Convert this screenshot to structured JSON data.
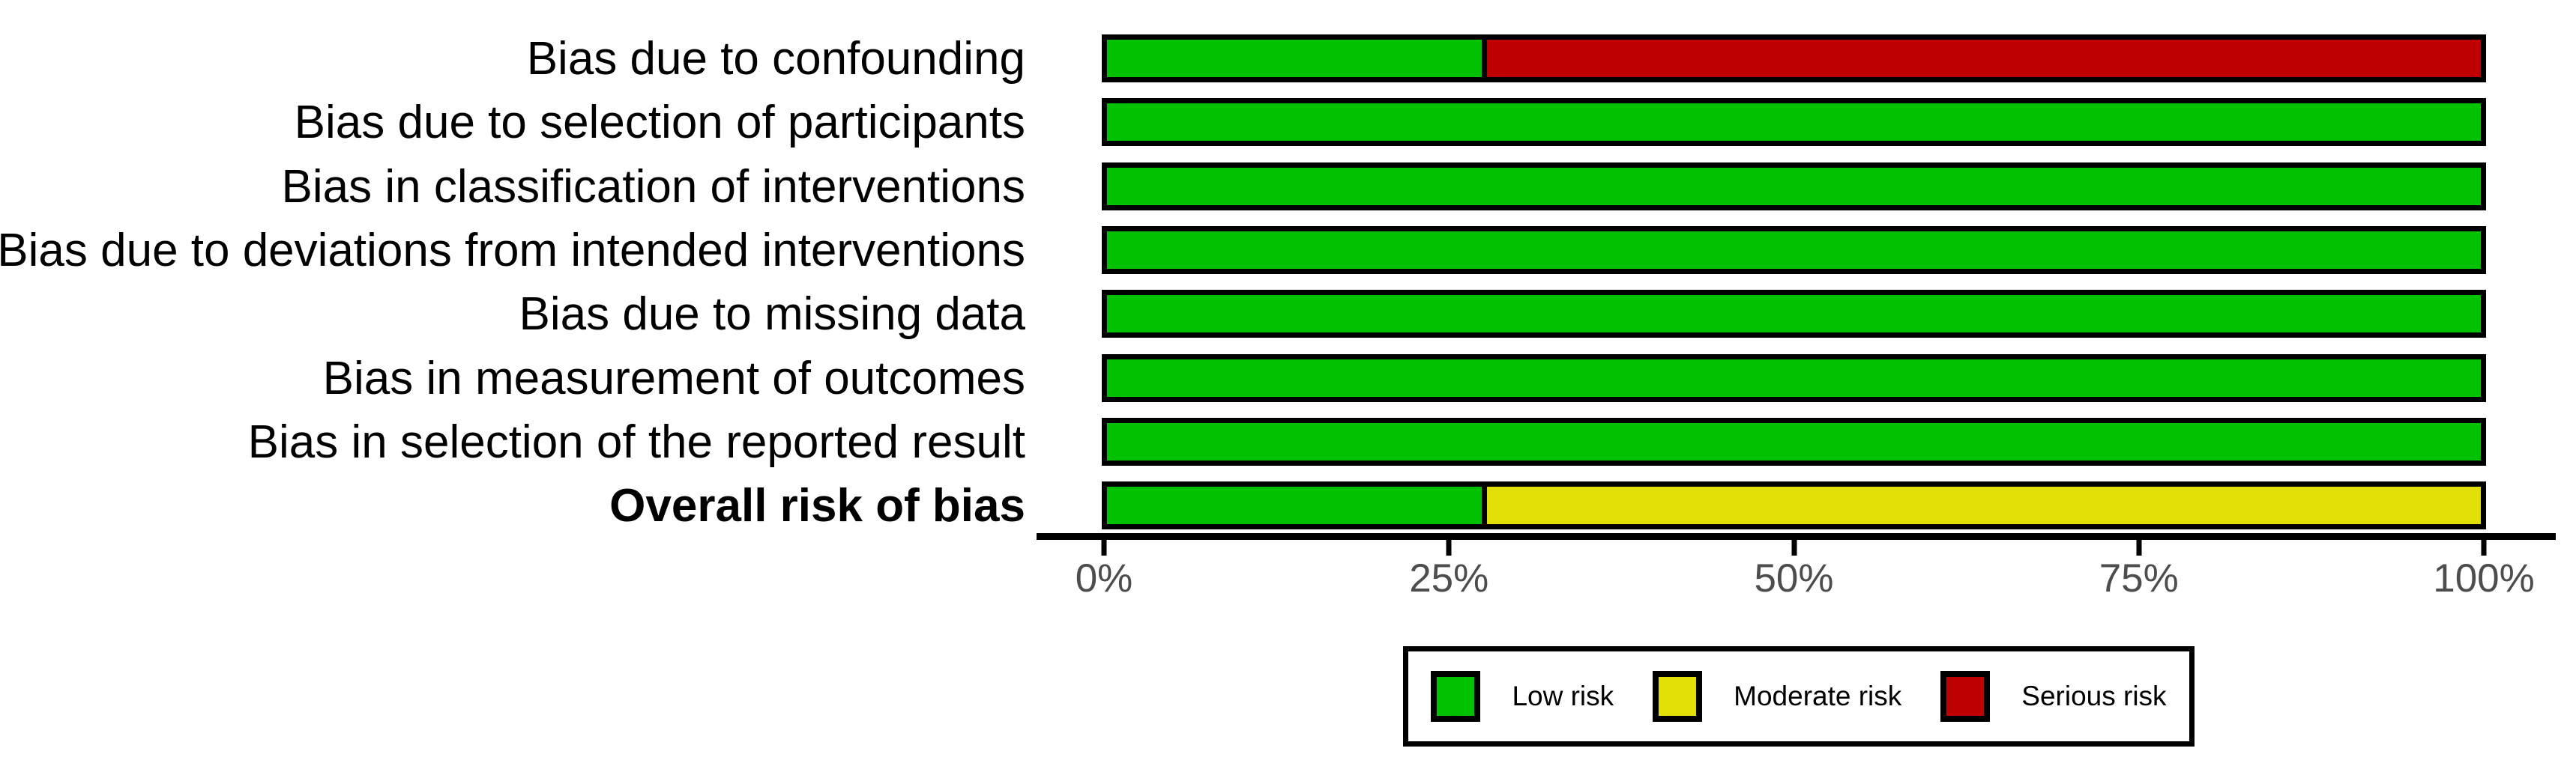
{
  "chart_data": {
    "type": "bar",
    "subtype": "horizontal_stacked_percent",
    "title": "",
    "xlabel": "",
    "ylabel": "",
    "grid": false,
    "categories": [
      "Bias due to confounding",
      "Bias due to selection of participants",
      "Bias in classification of interventions",
      "Bias due to deviations from intended interventions",
      "Bias due to missing data",
      "Bias in measurement of outcomes",
      "Bias in selection of the reported result",
      "Overall risk of bias"
    ],
    "bold_categories": [
      "Overall risk of bias"
    ],
    "series": [
      {
        "name": "Low risk",
        "color": "#02c100",
        "values": [
          27.3,
          100,
          100,
          100,
          100,
          100,
          100,
          27.3
        ]
      },
      {
        "name": "Moderate risk",
        "color": "#e2df07",
        "values": [
          0,
          0,
          0,
          0,
          0,
          0,
          0,
          72.7
        ]
      },
      {
        "name": "Serious risk",
        "color": "#bf0000",
        "values": [
          72.7,
          0,
          0,
          0,
          0,
          0,
          0,
          0
        ]
      }
    ],
    "x_axis": {
      "range": [
        0,
        100
      ],
      "tick_values": [
        0,
        25,
        50,
        75,
        100
      ],
      "tick_labels": [
        "0%",
        "25%",
        "50%",
        "75%",
        "100%"
      ]
    },
    "legend": {
      "position": "bottom",
      "entries": [
        {
          "label": "Low risk",
          "color": "#02c100"
        },
        {
          "label": "Moderate risk",
          "color": "#e2df07"
        },
        {
          "label": "Serious risk",
          "color": "#bf0000"
        }
      ]
    },
    "colors": {
      "bar_border": "#000000",
      "axis_line": "#000000",
      "tick_label": "#4d4d4d",
      "category_label": "#000000",
      "background": "#ffffff"
    }
  }
}
